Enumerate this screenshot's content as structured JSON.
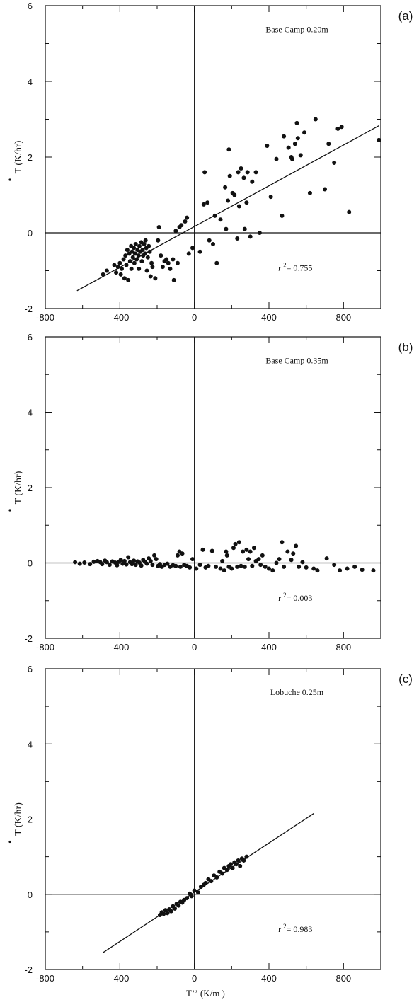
{
  "chart_data": [
    {
      "panel_label": "(a)",
      "type": "scatter",
      "annotation": "Base Camp   0.20m",
      "r_squared_text": "= 0.755",
      "r_prefix": "r",
      "r_exp": "2",
      "ylabel": "T  (K/hr)",
      "xlim": [
        -800,
        1000
      ],
      "ylim": [
        -2,
        6
      ],
      "x_ticks": [
        "-800",
        "-400",
        "0",
        "400",
        "800"
      ],
      "y_ticks": [
        "-2",
        "0",
        "2",
        "4",
        "6"
      ],
      "regression": {
        "x": [
          -630,
          990
        ],
        "y": [
          -1.53,
          2.83
        ]
      },
      "points": [
        [
          -490,
          -1.1
        ],
        [
          -470,
          -1.0
        ],
        [
          -430,
          -0.85
        ],
        [
          -420,
          -1.05
        ],
        [
          -410,
          -0.9
        ],
        [
          -400,
          -0.8
        ],
        [
          -395,
          -1.1
        ],
        [
          -390,
          -0.95
        ],
        [
          -380,
          -0.7
        ],
        [
          -375,
          -1.2
        ],
        [
          -370,
          -0.6
        ],
        [
          -365,
          -0.85
        ],
        [
          -360,
          -0.45
        ],
        [
          -355,
          -1.25
        ],
        [
          -350,
          -0.55
        ],
        [
          -345,
          -0.75
        ],
        [
          -340,
          -0.35
        ],
        [
          -338,
          -0.95
        ],
        [
          -335,
          -0.5
        ],
        [
          -330,
          -0.65
        ],
        [
          -325,
          -0.4
        ],
        [
          -322,
          -0.8
        ],
        [
          -318,
          -0.55
        ],
        [
          -315,
          -0.3
        ],
        [
          -310,
          -0.7
        ],
        [
          -305,
          -0.45
        ],
        [
          -300,
          -0.6
        ],
        [
          -298,
          -0.95
        ],
        [
          -295,
          -0.35
        ],
        [
          -290,
          -0.5
        ],
        [
          -285,
          -0.25
        ],
        [
          -282,
          -0.75
        ],
        [
          -278,
          -0.45
        ],
        [
          -275,
          -0.6
        ],
        [
          -270,
          -0.3
        ],
        [
          -265,
          -0.55
        ],
        [
          -262,
          -0.2
        ],
        [
          -258,
          -0.4
        ],
        [
          -255,
          -1.0
        ],
        [
          -250,
          -0.65
        ],
        [
          -245,
          -0.35
        ],
        [
          -240,
          -0.5
        ],
        [
          -235,
          -1.15
        ],
        [
          -230,
          -0.8
        ],
        [
          -225,
          -0.9
        ],
        [
          -210,
          -1.2
        ],
        [
          -195,
          -0.2
        ],
        [
          -190,
          0.15
        ],
        [
          -180,
          -0.6
        ],
        [
          -170,
          -0.9
        ],
        [
          -160,
          -0.75
        ],
        [
          -150,
          -0.7
        ],
        [
          -140,
          -0.8
        ],
        [
          -130,
          -0.95
        ],
        [
          -115,
          -0.7
        ],
        [
          -110,
          -1.25
        ],
        [
          -100,
          0.05
        ],
        [
          -90,
          -0.8
        ],
        [
          -80,
          0.15
        ],
        [
          -70,
          0.2
        ],
        [
          -50,
          0.3
        ],
        [
          -40,
          0.4
        ],
        [
          -30,
          -0.55
        ],
        [
          -10,
          -0.4
        ],
        [
          30,
          -0.5
        ],
        [
          50,
          0.75
        ],
        [
          55,
          1.6
        ],
        [
          70,
          0.8
        ],
        [
          80,
          -0.2
        ],
        [
          100,
          -0.3
        ],
        [
          110,
          0.45
        ],
        [
          120,
          -0.8
        ],
        [
          140,
          0.35
        ],
        [
          165,
          1.2
        ],
        [
          170,
          0.1
        ],
        [
          180,
          0.85
        ],
        [
          185,
          2.2
        ],
        [
          190,
          1.5
        ],
        [
          205,
          1.05
        ],
        [
          215,
          1.0
        ],
        [
          230,
          -0.15
        ],
        [
          235,
          1.6
        ],
        [
          240,
          0.7
        ],
        [
          250,
          1.7
        ],
        [
          265,
          1.45
        ],
        [
          270,
          0.1
        ],
        [
          280,
          0.8
        ],
        [
          285,
          1.6
        ],
        [
          300,
          -0.1
        ],
        [
          310,
          1.35
        ],
        [
          330,
          1.6
        ],
        [
          350,
          0.0
        ],
        [
          390,
          2.3
        ],
        [
          410,
          0.95
        ],
        [
          440,
          1.95
        ],
        [
          470,
          0.45
        ],
        [
          480,
          2.55
        ],
        [
          505,
          2.25
        ],
        [
          520,
          2.0
        ],
        [
          525,
          1.95
        ],
        [
          540,
          2.35
        ],
        [
          550,
          2.9
        ],
        [
          555,
          2.5
        ],
        [
          570,
          2.05
        ],
        [
          590,
          2.65
        ],
        [
          620,
          1.05
        ],
        [
          650,
          3.0
        ],
        [
          700,
          1.15
        ],
        [
          720,
          2.35
        ],
        [
          750,
          1.85
        ],
        [
          770,
          2.75
        ],
        [
          790,
          2.8
        ],
        [
          830,
          0.55
        ],
        [
          990,
          2.45
        ]
      ]
    },
    {
      "panel_label": "(b)",
      "type": "scatter",
      "annotation": "Base Camp  0.35m",
      "r_squared_text": "= 0.003",
      "r_prefix": "r",
      "r_exp": "2",
      "ylabel": "T  (K/hr)",
      "xlim": [
        -800,
        1000
      ],
      "ylim": [
        -2,
        6
      ],
      "x_ticks": [
        "-800",
        "-400",
        "0",
        "400",
        "800"
      ],
      "y_ticks": [
        "-2",
        "0",
        "2",
        "4",
        "6"
      ],
      "regression": null,
      "points": [
        [
          -640,
          0.02
        ],
        [
          -615,
          -0.02
        ],
        [
          -590,
          0.01
        ],
        [
          -560,
          -0.03
        ],
        [
          -540,
          0.03
        ],
        [
          -520,
          0.05
        ],
        [
          -505,
          0.02
        ],
        [
          -495,
          -0.03
        ],
        [
          -480,
          0.06
        ],
        [
          -470,
          0.02
        ],
        [
          -455,
          -0.05
        ],
        [
          -440,
          0.04
        ],
        [
          -425,
          0.01
        ],
        [
          -415,
          -0.06
        ],
        [
          -405,
          0.03
        ],
        [
          -395,
          0.08
        ],
        [
          -385,
          -0.02
        ],
        [
          -375,
          0.05
        ],
        [
          -365,
          -0.04
        ],
        [
          -355,
          0.15
        ],
        [
          -345,
          0.02
        ],
        [
          -335,
          -0.03
        ],
        [
          -325,
          0.06
        ],
        [
          -315,
          -0.05
        ],
        [
          -305,
          0.04
        ],
        [
          -295,
          0.01
        ],
        [
          -285,
          -0.07
        ],
        [
          -275,
          0.08
        ],
        [
          -265,
          0.03
        ],
        [
          -255,
          -0.02
        ],
        [
          -245,
          0.12
        ],
        [
          -235,
          0.05
        ],
        [
          -225,
          -0.05
        ],
        [
          -215,
          0.2
        ],
        [
          -205,
          0.1
        ],
        [
          -195,
          -0.08
        ],
        [
          -185,
          -0.03
        ],
        [
          -175,
          -0.1
        ],
        [
          -160,
          -0.05
        ],
        [
          -145,
          -0.02
        ],
        [
          -130,
          -0.1
        ],
        [
          -115,
          -0.06
        ],
        [
          -100,
          -0.08
        ],
        [
          -90,
          0.2
        ],
        [
          -80,
          0.3
        ],
        [
          -75,
          -0.1
        ],
        [
          -65,
          0.25
        ],
        [
          -55,
          -0.05
        ],
        [
          -40,
          -0.08
        ],
        [
          -25,
          -0.12
        ],
        [
          -10,
          0.1
        ],
        [
          10,
          -0.15
        ],
        [
          30,
          -0.05
        ],
        [
          45,
          0.35
        ],
        [
          60,
          -0.12
        ],
        [
          75,
          -0.08
        ],
        [
          95,
          0.32
        ],
        [
          115,
          -0.1
        ],
        [
          140,
          -0.15
        ],
        [
          150,
          0.05
        ],
        [
          160,
          -0.2
        ],
        [
          170,
          0.3
        ],
        [
          175,
          0.2
        ],
        [
          185,
          -0.1
        ],
        [
          200,
          -0.15
        ],
        [
          210,
          0.4
        ],
        [
          220,
          0.5
        ],
        [
          230,
          -0.1
        ],
        [
          240,
          0.55
        ],
        [
          250,
          -0.08
        ],
        [
          260,
          0.3
        ],
        [
          270,
          -0.1
        ],
        [
          280,
          0.35
        ],
        [
          290,
          0.1
        ],
        [
          300,
          0.3
        ],
        [
          310,
          -0.08
        ],
        [
          320,
          0.4
        ],
        [
          330,
          0.05
        ],
        [
          345,
          0.1
        ],
        [
          355,
          -0.05
        ],
        [
          365,
          0.2
        ],
        [
          380,
          -0.1
        ],
        [
          400,
          -0.15
        ],
        [
          420,
          -0.2
        ],
        [
          440,
          0.0
        ],
        [
          455,
          0.1
        ],
        [
          470,
          0.55
        ],
        [
          480,
          -0.1
        ],
        [
          500,
          0.3
        ],
        [
          520,
          0.08
        ],
        [
          530,
          0.25
        ],
        [
          545,
          0.45
        ],
        [
          560,
          -0.1
        ],
        [
          580,
          0.02
        ],
        [
          600,
          -0.12
        ],
        [
          640,
          -0.15
        ],
        [
          660,
          -0.2
        ],
        [
          710,
          0.12
        ],
        [
          750,
          -0.05
        ],
        [
          780,
          -0.2
        ],
        [
          820,
          -0.15
        ],
        [
          860,
          -0.1
        ],
        [
          900,
          -0.18
        ],
        [
          960,
          -0.2
        ]
      ]
    },
    {
      "panel_label": "(c)",
      "type": "scatter",
      "annotation": "Lobuche  0.25m",
      "r_squared_text": "= 0.983",
      "r_prefix": "r",
      "r_exp": "2",
      "ylabel": "T  (K/hr)",
      "xlabel": "Tʼʼ (K/m )",
      "xlim": [
        -800,
        1000
      ],
      "ylim": [
        -2,
        6
      ],
      "x_ticks": [
        "-800",
        "-400",
        "0",
        "400",
        "800"
      ],
      "y_ticks": [
        "-2",
        "0",
        "2",
        "4",
        "6"
      ],
      "regression": {
        "x": [
          -490,
          640
        ],
        "y": [
          -1.55,
          2.15
        ]
      },
      "points": [
        [
          -185,
          -0.55
        ],
        [
          -175,
          -0.48
        ],
        [
          -165,
          -0.52
        ],
        [
          -155,
          -0.42
        ],
        [
          -145,
          -0.5
        ],
        [
          -135,
          -0.4
        ],
        [
          -125,
          -0.45
        ],
        [
          -115,
          -0.32
        ],
        [
          -105,
          -0.38
        ],
        [
          -95,
          -0.25
        ],
        [
          -85,
          -0.3
        ],
        [
          -75,
          -0.2
        ],
        [
          -65,
          -0.22
        ],
        [
          -55,
          -0.15
        ],
        [
          -40,
          -0.1
        ],
        [
          -25,
          0.02
        ],
        [
          -15,
          -0.05
        ],
        [
          0,
          0.1
        ],
        [
          20,
          0.05
        ],
        [
          35,
          0.2
        ],
        [
          50,
          0.25
        ],
        [
          60,
          0.3
        ],
        [
          75,
          0.4
        ],
        [
          90,
          0.35
        ],
        [
          105,
          0.5
        ],
        [
          120,
          0.45
        ],
        [
          135,
          0.6
        ],
        [
          150,
          0.55
        ],
        [
          160,
          0.7
        ],
        [
          175,
          0.65
        ],
        [
          185,
          0.75
        ],
        [
          195,
          0.8
        ],
        [
          205,
          0.7
        ],
        [
          215,
          0.85
        ],
        [
          225,
          0.8
        ],
        [
          235,
          0.9
        ],
        [
          245,
          0.75
        ],
        [
          255,
          0.95
        ],
        [
          265,
          0.9
        ],
        [
          280,
          1.0
        ]
      ]
    }
  ]
}
